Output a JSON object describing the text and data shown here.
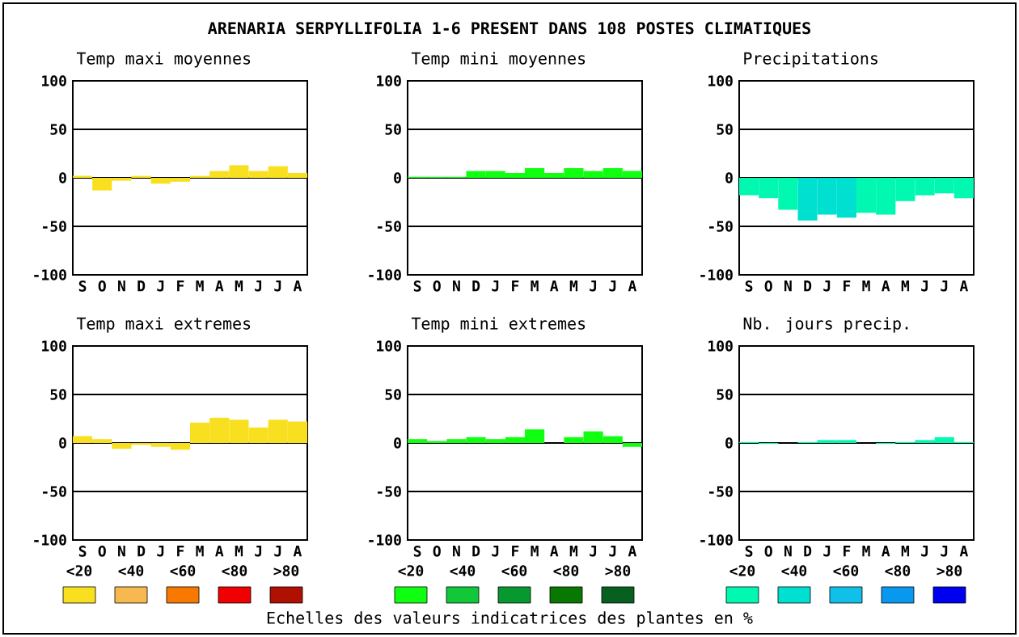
{
  "chart_data": [
    {
      "type": "other",
      "title": "ARENARIA SERPYLLIFOLIA  1-6 PRESENT DANS 108 POSTES CLIMATIQUES"
    },
    {
      "type": "bar",
      "title": "Temp maxi moyennes",
      "categories": [
        "S",
        "O",
        "N",
        "D",
        "J",
        "F",
        "M",
        "A",
        "M",
        "J",
        "J",
        "A"
      ],
      "values": [
        2,
        -13,
        -3,
        2,
        -6,
        -4,
        2,
        7,
        13,
        7,
        12,
        5
      ],
      "colors": [
        "#f8e020",
        "#f8e020",
        "#f8e020",
        "#f8e020",
        "#f8e020",
        "#f8e020",
        "#f8e020",
        "#f8e020",
        "#f8e020",
        "#f8e020",
        "#f8e020",
        "#f8e020"
      ],
      "ylim": [
        -100,
        100
      ],
      "yticks": [
        -100,
        -50,
        0,
        50,
        100
      ],
      "grid": "y"
    },
    {
      "type": "bar",
      "title": "Temp mini moyennes",
      "categories": [
        "S",
        "O",
        "N",
        "D",
        "J",
        "F",
        "M",
        "A",
        "M",
        "J",
        "J",
        "A"
      ],
      "values": [
        1,
        1,
        1,
        7,
        7,
        5,
        10,
        5,
        10,
        7,
        10,
        7
      ],
      "colors": [
        "#10ff10",
        "#10ff10",
        "#10ff10",
        "#10ff10",
        "#10ff10",
        "#10ff10",
        "#10ff10",
        "#10ff10",
        "#10ff10",
        "#10ff10",
        "#10ff10",
        "#10ff10"
      ],
      "ylim": [
        -100,
        100
      ],
      "yticks": [
        -100,
        -50,
        0,
        50,
        100
      ],
      "grid": "y"
    },
    {
      "type": "bar",
      "title": "Precipitations",
      "categories": [
        "S",
        "O",
        "N",
        "D",
        "J",
        "F",
        "M",
        "A",
        "M",
        "J",
        "J",
        "A"
      ],
      "values": [
        -18,
        -21,
        -33,
        -44,
        -38,
        -41,
        -36,
        -38,
        -24,
        -18,
        -16,
        -21
      ],
      "colors": [
        "#00f8b0",
        "#00f8b0",
        "#00f8b0",
        "#00e0d0",
        "#00e0d0",
        "#00e0d0",
        "#00f8b0",
        "#00f8b0",
        "#00f8b0",
        "#00f8b0",
        "#00f8b0",
        "#00f8b0"
      ],
      "ylim": [
        -100,
        100
      ],
      "yticks": [
        -100,
        -50,
        0,
        50,
        100
      ],
      "grid": "y"
    },
    {
      "type": "bar",
      "title": "Temp maxi extremes",
      "categories": [
        "S",
        "O",
        "N",
        "D",
        "J",
        "F",
        "M",
        "A",
        "M",
        "J",
        "J",
        "A"
      ],
      "values": [
        7,
        4,
        -6,
        -2,
        -4,
        -7,
        21,
        26,
        24,
        16,
        24,
        22
      ],
      "colors": [
        "#f8e020",
        "#f8e020",
        "#f8e020",
        "#f8e020",
        "#f8e020",
        "#f8e020",
        "#f8e020",
        "#f8e020",
        "#f8e020",
        "#f8e020",
        "#f8e020",
        "#f8e020"
      ],
      "ylim": [
        -100,
        100
      ],
      "yticks": [
        -100,
        -50,
        0,
        50,
        100
      ],
      "grid": "y"
    },
    {
      "type": "bar",
      "title": "Temp mini extremes",
      "categories": [
        "S",
        "O",
        "N",
        "D",
        "J",
        "F",
        "M",
        "A",
        "M",
        "J",
        "J",
        "A"
      ],
      "values": [
        4,
        2,
        4,
        6,
        4,
        6,
        14,
        0,
        6,
        12,
        7,
        -4
      ],
      "colors": [
        "#10ff10",
        "#10ff10",
        "#10ff10",
        "#10ff10",
        "#10ff10",
        "#10ff10",
        "#10ff10",
        "#10ff10",
        "#10ff10",
        "#10ff10",
        "#10ff10",
        "#10ff10"
      ],
      "ylim": [
        -100,
        100
      ],
      "yticks": [
        -100,
        -50,
        0,
        50,
        100
      ],
      "grid": "y"
    },
    {
      "type": "bar",
      "title": "Nb. jours precip.",
      "categories": [
        "S",
        "O",
        "N",
        "D",
        "J",
        "F",
        "M",
        "A",
        "M",
        "J",
        "J",
        "A"
      ],
      "values": [
        1,
        -1,
        0,
        1,
        3,
        3,
        0,
        -1,
        1,
        3,
        6,
        1
      ],
      "colors": [
        "#00f8b0",
        "#00f8b0",
        "#00f8b0",
        "#00f8b0",
        "#00f8b0",
        "#00f8b0",
        "#00f8b0",
        "#00f8b0",
        "#00f8b0",
        "#00f8b0",
        "#00f8b0",
        "#00f8b0"
      ],
      "ylim": [
        -100,
        100
      ],
      "yticks": [
        -100,
        -50,
        0,
        50,
        100
      ],
      "grid": "y"
    },
    {
      "type": "other",
      "categories": [
        "<20",
        "<40",
        "<60",
        "<80",
        ">80"
      ],
      "colors": [
        "#f8e020",
        "#f8b850",
        "#f87800",
        "#f00000",
        "#b01000"
      ]
    },
    {
      "type": "other",
      "categories": [
        "<20",
        "<40",
        "<60",
        "<80",
        ">80"
      ],
      "colors": [
        "#10ff10",
        "#10c838",
        "#089830",
        "#087800",
        "#086020"
      ],
      "annotations": [
        "Echelles des valeurs indicatrices des plantes en %"
      ]
    },
    {
      "type": "other",
      "categories": [
        "<20",
        "<40",
        "<60",
        "<80",
        ">80"
      ],
      "colors": [
        "#00f8b0",
        "#00e0d0",
        "#10c0e8",
        "#0898f0",
        "#0000f0"
      ]
    }
  ]
}
